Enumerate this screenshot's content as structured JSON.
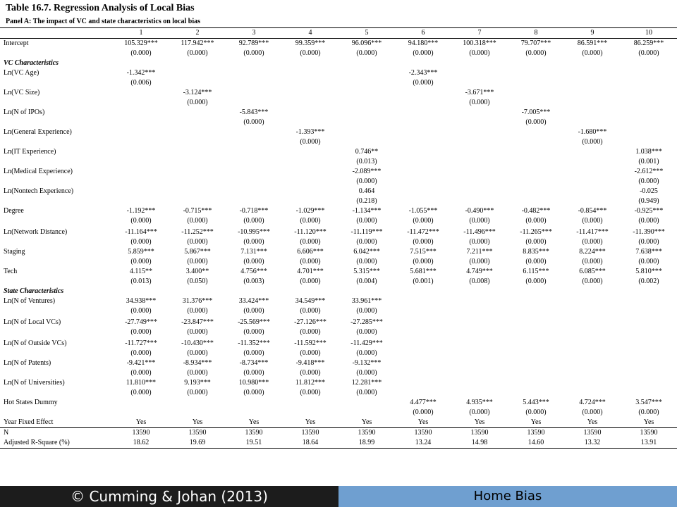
{
  "title": "Table 16.7. Regression Analysis of Local Bias",
  "subtitle": "Panel A: The impact of VC and state characteristics on local bias",
  "columns": [
    "1",
    "2",
    "3",
    "4",
    "5",
    "6",
    "7",
    "8",
    "9",
    "10"
  ],
  "sections": {
    "vc": "VC Characteristics",
    "state": "State Characteristics"
  },
  "rows": [
    {
      "type": "main",
      "label": "Intercept",
      "v": [
        "105.329***",
        "117.942***",
        "92.789***",
        "99.359***",
        "96.096***",
        "94.180***",
        "100.318***",
        "79.707***",
        "86.591***",
        "86.259***"
      ],
      "p": [
        "(0.000)",
        "(0.000)",
        "(0.000)",
        "(0.000)",
        "(0.000)",
        "(0.000)",
        "(0.000)",
        "(0.000)",
        "(0.000)",
        "(0.000)"
      ]
    },
    {
      "type": "section",
      "key": "vc"
    },
    {
      "type": "main",
      "label": "Ln(VC Age)",
      "v": [
        "-1.342***",
        "",
        "",
        "",
        "",
        "-2.343***",
        "",
        "",
        "",
        ""
      ],
      "p": [
        "(0.006)",
        "",
        "",
        "",
        "",
        "(0.000)",
        "",
        "",
        "",
        ""
      ]
    },
    {
      "type": "main",
      "label": "Ln(VC Size)",
      "v": [
        "",
        "-3.124***",
        "",
        "",
        "",
        "",
        "-3.671***",
        "",
        "",
        ""
      ],
      "p": [
        "",
        "(0.000)",
        "",
        "",
        "",
        "",
        "(0.000)",
        "",
        "",
        ""
      ]
    },
    {
      "type": "main",
      "label": "Ln(N of IPOs)",
      "v": [
        "",
        "",
        "-5.843***",
        "",
        "",
        "",
        "",
        "-7.005***",
        "",
        ""
      ],
      "p": [
        "",
        "",
        "(0.000)",
        "",
        "",
        "",
        "",
        "(0.000)",
        "",
        ""
      ]
    },
    {
      "type": "main",
      "label": "Ln(General Experience)",
      "v": [
        "",
        "",
        "",
        "-1.393***",
        "",
        "",
        "",
        "",
        "-1.680***",
        ""
      ],
      "p": [
        "",
        "",
        "",
        "(0.000)",
        "",
        "",
        "",
        "",
        "(0.000)",
        ""
      ]
    },
    {
      "type": "main",
      "label": "Ln(IT Experience)",
      "v": [
        "",
        "",
        "",
        "",
        "0.746**",
        "",
        "",
        "",
        "",
        "1.038***"
      ],
      "p": [
        "",
        "",
        "",
        "",
        "(0.013)",
        "",
        "",
        "",
        "",
        "(0.001)"
      ]
    },
    {
      "type": "main",
      "label": "Ln(Medical Experience)",
      "v": [
        "",
        "",
        "",
        "",
        "-2.089***",
        "",
        "",
        "",
        "",
        "-2.612***"
      ],
      "p": [
        "",
        "",
        "",
        "",
        "(0.000)",
        "",
        "",
        "",
        "",
        "(0.000)"
      ]
    },
    {
      "type": "main",
      "label": "Ln(Nontech Experience)",
      "v": [
        "",
        "",
        "",
        "",
        "0.464",
        "",
        "",
        "",
        "",
        "-0.025"
      ],
      "p": [
        "",
        "",
        "",
        "",
        "(0.218)",
        "",
        "",
        "",
        "",
        "(0.949)"
      ]
    },
    {
      "type": "main",
      "label": "Degree",
      "v": [
        "-1.192***",
        "-0.715***",
        "-0.718***",
        "-1.029***",
        "-1.134***",
        "-1.055***",
        "-0.490***",
        "-0.482***",
        "-0.854***",
        "-0.925***"
      ],
      "p": [
        "(0.000)",
        "(0.000)",
        "(0.000)",
        "(0.000)",
        "(0.000)",
        "(0.000)",
        "(0.000)",
        "(0.000)",
        "(0.000)",
        "(0.000)"
      ]
    },
    {
      "type": "gap"
    },
    {
      "type": "main",
      "label": "Ln(Network Distance)",
      "v": [
        "-11.164***",
        "-11.252***",
        "-10.995***",
        "-11.120***",
        "-11.119***",
        "-11.472***",
        "-11.496***",
        "-11.265***",
        "-11.417***",
        "-11.390***"
      ],
      "p": [
        "(0.000)",
        "(0.000)",
        "(0.000)",
        "(0.000)",
        "(0.000)",
        "(0.000)",
        "(0.000)",
        "(0.000)",
        "(0.000)",
        "(0.000)"
      ]
    },
    {
      "type": "main",
      "label": "Staging",
      "v": [
        "5.859***",
        "5.867***",
        "7.131***",
        "6.606***",
        "6.042***",
        "7.515***",
        "7.211***",
        "8.835***",
        "8.224***",
        "7.638***"
      ],
      "p": [
        "(0.000)",
        "(0.000)",
        "(0.000)",
        "(0.000)",
        "(0.000)",
        "(0.000)",
        "(0.000)",
        "(0.000)",
        "(0.000)",
        "(0.000)"
      ]
    },
    {
      "type": "main",
      "label": "Tech",
      "v": [
        "4.115**",
        "3.400**",
        "4.756***",
        "4.701***",
        "5.315***",
        "5.681***",
        "4.749***",
        "6.115***",
        "6.085***",
        "5.810***"
      ],
      "p": [
        "(0.013)",
        "(0.050)",
        "(0.003)",
        "(0.000)",
        "(0.004)",
        "(0.001)",
        "(0.008)",
        "(0.000)",
        "(0.000)",
        "(0.002)"
      ]
    },
    {
      "type": "section",
      "key": "state"
    },
    {
      "type": "main",
      "label": "Ln(N of Ventures)",
      "v": [
        "34.938***",
        "31.376***",
        "33.424***",
        "34.549***",
        "33.961***",
        "",
        "",
        "",
        "",
        ""
      ],
      "p": [
        "(0.000)",
        "(0.000)",
        "(0.000)",
        "(0.000)",
        "(0.000)",
        "",
        "",
        "",
        "",
        ""
      ]
    },
    {
      "type": "gap"
    },
    {
      "type": "main",
      "label": "Ln(N of Local VCs)",
      "v": [
        "-27.749***",
        "-23.847***",
        "-25.569***",
        "-27.126***",
        "-27.285***",
        "",
        "",
        "",
        "",
        ""
      ],
      "p": [
        "(0.000)",
        "(0.000)",
        "(0.000)",
        "(0.000)",
        "(0.000)",
        "",
        "",
        "",
        "",
        ""
      ]
    },
    {
      "type": "gap"
    },
    {
      "type": "main",
      "label": "Ln(N of Outside VCs)",
      "v": [
        "-11.727***",
        "-10.430***",
        "-11.352***",
        "-11.592***",
        "-11.429***",
        "",
        "",
        "",
        "",
        ""
      ],
      "p": [
        "(0.000)",
        "(0.000)",
        "(0.000)",
        "(0.000)",
        "(0.000)",
        "",
        "",
        "",
        "",
        ""
      ]
    },
    {
      "type": "main",
      "label": "Ln(N of Patents)",
      "v": [
        "-9.421***",
        "-8.934***",
        "-8.734***",
        "-9.418***",
        "-9.132***",
        "",
        "",
        "",
        "",
        ""
      ],
      "p": [
        "(0.000)",
        "(0.000)",
        "(0.000)",
        "(0.000)",
        "(0.000)",
        "",
        "",
        "",
        "",
        ""
      ]
    },
    {
      "type": "main",
      "label": "Ln(N of Universities)",
      "v": [
        "11.810***",
        "9.193***",
        "10.980***",
        "11.812***",
        "12.281***",
        "",
        "",
        "",
        "",
        ""
      ],
      "p": [
        "(0.000)",
        "(0.000)",
        "(0.000)",
        "(0.000)",
        "(0.000)",
        "",
        "",
        "",
        "",
        ""
      ]
    },
    {
      "type": "main",
      "label": "Hot States Dummy",
      "v": [
        "",
        "",
        "",
        "",
        "",
        "4.477***",
        "4.935***",
        "5.443***",
        "4.724***",
        "3.547***"
      ],
      "p": [
        "",
        "",
        "",
        "",
        "",
        "(0.000)",
        "(0.000)",
        "(0.000)",
        "(0.000)",
        "(0.000)"
      ]
    },
    {
      "type": "single",
      "label": "Year Fixed Effect",
      "v": [
        "Yes",
        "Yes",
        "Yes",
        "Yes",
        "Yes",
        "Yes",
        "Yes",
        "Yes",
        "Yes",
        "Yes"
      ]
    },
    {
      "type": "single",
      "cls": "n-row",
      "label": "N",
      "v": [
        "13590",
        "13590",
        "13590",
        "13590",
        "13590",
        "13590",
        "13590",
        "13590",
        "13590",
        "13590"
      ]
    },
    {
      "type": "single",
      "cls": "last",
      "label": "Adjusted R-Square (%)",
      "v": [
        "18.62",
        "19.69",
        "19.51",
        "18.64",
        "18.99",
        "13.24",
        "14.98",
        "14.60",
        "13.32",
        "13.91"
      ]
    }
  ],
  "footer": {
    "left": "© Cumming & Johan (2013)",
    "right": "Home Bias"
  },
  "colors": {
    "footer_left_bg": "#1c1c1c",
    "footer_right_bg": "#6f9fd0"
  }
}
